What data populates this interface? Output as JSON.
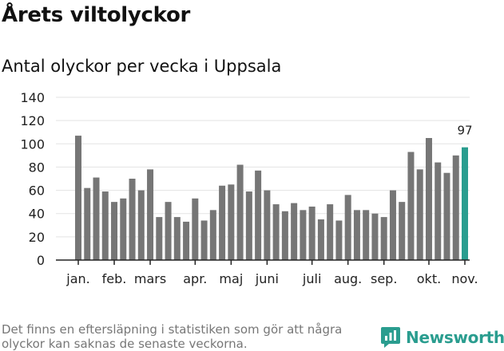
{
  "header": {
    "title": "Årets viltolyckor",
    "subtitle": "Antal olyckor per vecka i Uppsala"
  },
  "footer": {
    "note": "Det finns en eftersläpning i statistiken som gör att några olyckor kan saknas de senaste veckorna.",
    "brand": "Newsworthy",
    "brand_icon": "newsworthy-logo-icon"
  },
  "colors": {
    "bar": "#767676",
    "highlight": "#2a9d8f",
    "grid": "#e3e3e3",
    "axis": "#222222"
  },
  "chart_data": {
    "type": "bar",
    "ylim": [
      0,
      140
    ],
    "yticks": [
      0,
      20,
      40,
      60,
      80,
      100,
      120,
      140
    ],
    "grid": true,
    "values": [
      107,
      62,
      71,
      59,
      50,
      53,
      70,
      60,
      78,
      37,
      50,
      37,
      33,
      53,
      34,
      43,
      64,
      65,
      82,
      59,
      77,
      60,
      48,
      42,
      49,
      43,
      46,
      35,
      48,
      34,
      56,
      43,
      43,
      40,
      37,
      60,
      50,
      93,
      78,
      105,
      84,
      75,
      90,
      97
    ],
    "highlight_index": 43,
    "highlight_label": "97",
    "month_labels": [
      {
        "label": "jan.",
        "index": 0
      },
      {
        "label": "feb.",
        "index": 4
      },
      {
        "label": "mars",
        "index": 8
      },
      {
        "label": "apr.",
        "index": 13
      },
      {
        "label": "maj",
        "index": 17
      },
      {
        "label": "juni",
        "index": 21
      },
      {
        "label": "juli",
        "index": 26
      },
      {
        "label": "aug.",
        "index": 30
      },
      {
        "label": "sep.",
        "index": 34
      },
      {
        "label": "okt.",
        "index": 39
      },
      {
        "label": "nov.",
        "index": 43
      }
    ]
  }
}
